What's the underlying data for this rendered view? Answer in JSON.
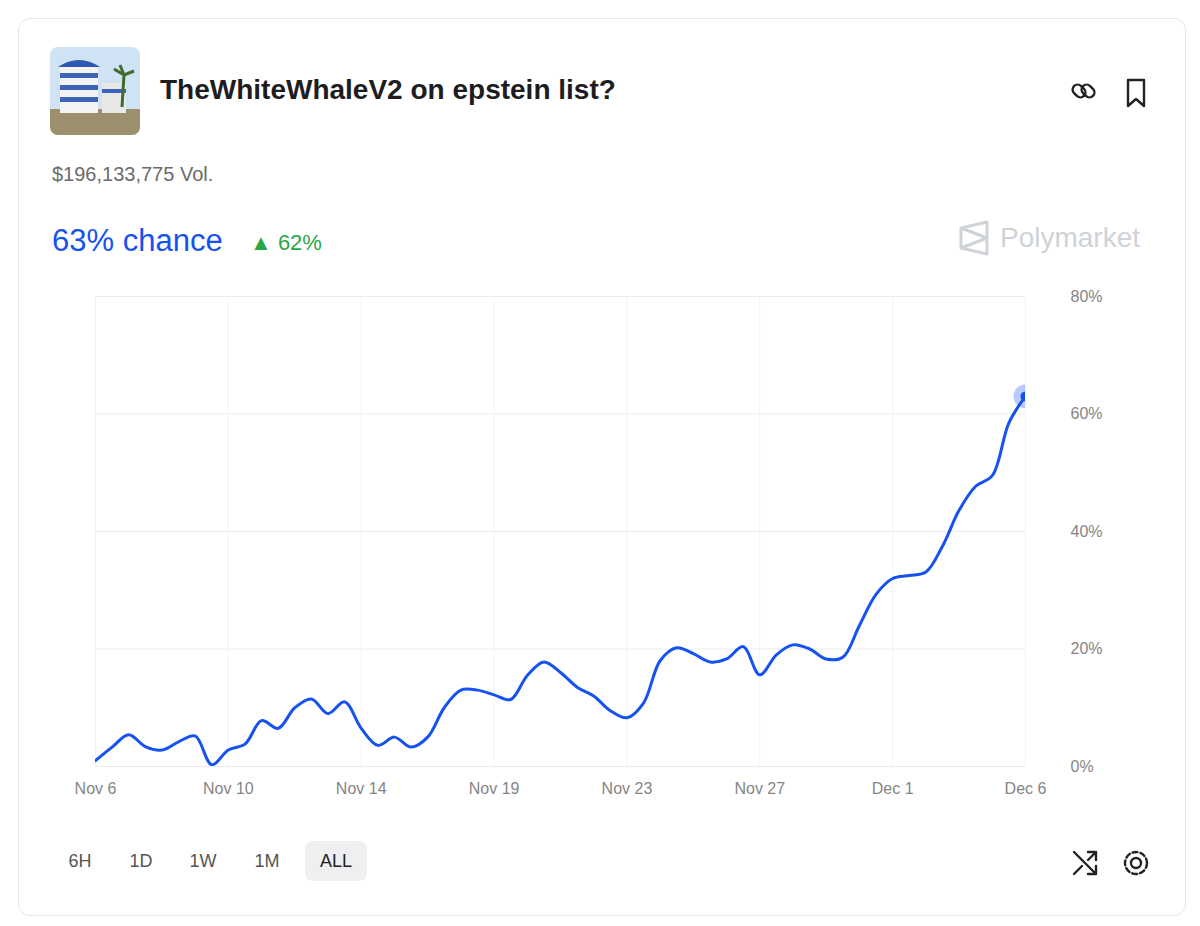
{
  "chart_data": {
    "type": "line",
    "title": "TheWhiteWhaleV2 on epstein list?",
    "categories": [
      "Nov 6",
      null,
      null,
      null,
      null,
      null,
      null,
      null,
      "Nov 10",
      null,
      null,
      null,
      null,
      null,
      null,
      null,
      "Nov 14",
      null,
      null,
      null,
      null,
      null,
      null,
      null,
      "Nov 19",
      null,
      null,
      null,
      null,
      null,
      null,
      null,
      "Nov 23",
      null,
      null,
      null,
      null,
      null,
      null,
      null,
      "Nov 27",
      null,
      null,
      null,
      null,
      null,
      null,
      null,
      "Dec 1",
      null,
      null,
      null,
      null,
      null,
      null,
      null,
      "Dec 6"
    ],
    "values": [
      1,
      3.3,
      5.4,
      3.4,
      2.8,
      4.2,
      5.2,
      0.3,
      2.8,
      3.8,
      7.8,
      6.5,
      10,
      11.5,
      9,
      11,
      6.5,
      3.6,
      5,
      3.3,
      5,
      10,
      13,
      13,
      12.2,
      11.4,
      15.5,
      17.8,
      16,
      13.5,
      12,
      9.5,
      8.3,
      10.8,
      18,
      20.2,
      19.2,
      17.8,
      18.3,
      20.4,
      15.6,
      19,
      20.7,
      20,
      18.3,
      18.6,
      24,
      29.3,
      32,
      32.5,
      33.1,
      37.5,
      43.6,
      47.7,
      49.5,
      58.5,
      63
    ],
    "color": "#1652f0",
    "ylim": [
      0,
      80
    ],
    "yticks": [
      {
        "value": 0,
        "label": "0%"
      },
      {
        "value": 20,
        "label": "20%"
      },
      {
        "value": 40,
        "label": "40%"
      },
      {
        "value": 60,
        "label": "60%"
      },
      {
        "value": 80,
        "label": "80%"
      }
    ],
    "grid": true
  },
  "header": {
    "volume": "$196,133,775 Vol.",
    "chance": "63% chance",
    "change": "▲ 62%",
    "brand": "Polymarket"
  },
  "range_buttons": [
    "6H",
    "1D",
    "1W",
    "1M",
    "ALL"
  ],
  "selected": "ALL"
}
